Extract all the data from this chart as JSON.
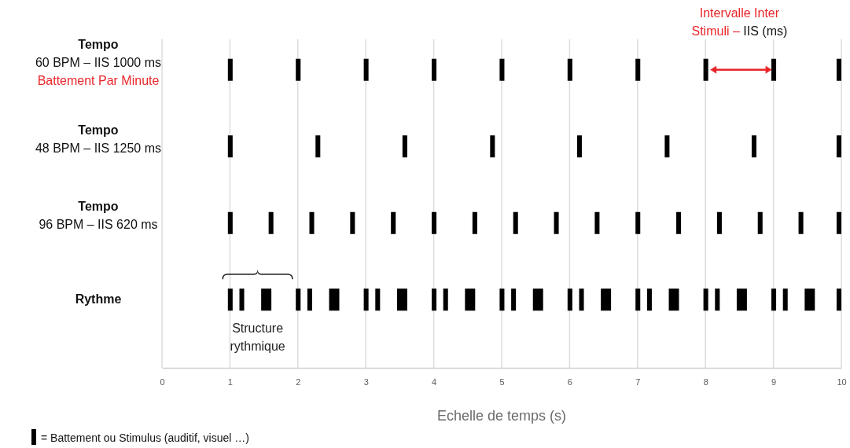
{
  "chart_data": {
    "type": "bar",
    "orientation": "horizontal",
    "color": "#000000",
    "grid": "x",
    "xlabel": "Echelle de temps (s)",
    "xlim": [
      0,
      10
    ],
    "xticks": [
      0,
      1,
      2,
      3,
      4,
      5,
      6,
      7,
      8,
      9,
      10
    ],
    "categories": [
      "Tempo\n60 BPM – IIS 1000 ms",
      "Tempo\n48 BPM – IIS 1250 ms",
      "Tempo\n96 BPM – IIS 620 ms",
      "Rythme"
    ],
    "annotations": [
      "Battement Par Minute",
      "Intervalle Inter\nStimuli –",
      "IIS (ms)",
      "Structure\nrythmique",
      "= Battement ou Stimulus (auditif, visuel …)"
    ],
    "series": [
      {
        "base": [
          0.97,
          0.97,
          0.97,
          0.97
        ],
        "values": [
          0.07,
          0.07,
          0.07,
          0.07
        ]
      },
      {
        "base": [
          1.97,
          2.26,
          1.57,
          1.14
        ],
        "values": [
          0.07,
          0.07,
          0.07,
          0.07
        ]
      },
      {
        "base": [
          2.97,
          3.54,
          2.17,
          1.46
        ],
        "values": [
          0.07,
          0.07,
          0.07,
          0.15
        ]
      },
      {
        "base": [
          3.97,
          4.83,
          2.77,
          1.97
        ],
        "values": [
          0.07,
          0.07,
          0.07,
          0.07
        ]
      },
      {
        "base": [
          4.97,
          6.11,
          3.37,
          2.14
        ],
        "values": [
          0.07,
          0.07,
          0.07,
          0.07
        ]
      },
      {
        "base": [
          5.97,
          7.4,
          3.97,
          2.46
        ],
        "values": [
          0.07,
          0.07,
          0.07,
          0.15
        ]
      },
      {
        "base": [
          6.97,
          8.68,
          4.57,
          2.97
        ],
        "values": [
          0.07,
          0.07,
          0.07,
          0.07
        ]
      },
      {
        "base": [
          7.97,
          9.93,
          5.17,
          3.14
        ],
        "values": [
          0.07,
          0.07,
          0.07,
          0.07
        ]
      },
      {
        "base": [
          8.97,
          null,
          5.77,
          3.46
        ],
        "values": [
          0.07,
          null,
          0.07,
          0.15
        ]
      },
      {
        "base": [
          9.93,
          null,
          6.37,
          3.97
        ],
        "values": [
          0.07,
          null,
          0.07,
          0.07
        ]
      },
      {
        "base": [
          null,
          null,
          6.97,
          4.14
        ],
        "values": [
          null,
          null,
          0.07,
          0.07
        ]
      },
      {
        "base": [
          null,
          null,
          7.57,
          4.46
        ],
        "values": [
          null,
          null,
          0.07,
          0.15
        ]
      },
      {
        "base": [
          null,
          null,
          8.17,
          4.97
        ],
        "values": [
          null,
          null,
          0.07,
          0.07
        ]
      },
      {
        "base": [
          null,
          null,
          8.77,
          5.14
        ],
        "values": [
          null,
          null,
          0.07,
          0.07
        ]
      },
      {
        "base": [
          null,
          null,
          9.37,
          5.46
        ],
        "values": [
          null,
          null,
          0.07,
          0.15
        ]
      },
      {
        "base": [
          null,
          null,
          9.93,
          5.97
        ],
        "values": [
          null,
          null,
          0.07,
          0.07
        ]
      },
      {
        "base": [
          null,
          null,
          null,
          6.14
        ],
        "values": [
          null,
          null,
          null,
          0.07
        ]
      },
      {
        "base": [
          null,
          null,
          null,
          6.46
        ],
        "values": [
          null,
          null,
          null,
          0.15
        ]
      },
      {
        "base": [
          null,
          null,
          null,
          6.97
        ],
        "values": [
          null,
          null,
          null,
          0.07
        ]
      },
      {
        "base": [
          null,
          null,
          null,
          7.14
        ],
        "values": [
          null,
          null,
          null,
          0.07
        ]
      },
      {
        "base": [
          null,
          null,
          null,
          7.46
        ],
        "values": [
          null,
          null,
          null,
          0.15
        ]
      },
      {
        "base": [
          null,
          null,
          null,
          7.97
        ],
        "values": [
          null,
          null,
          null,
          0.07
        ]
      },
      {
        "base": [
          null,
          null,
          null,
          8.14
        ],
        "values": [
          null,
          null,
          null,
          0.07
        ]
      },
      {
        "base": [
          null,
          null,
          null,
          8.46
        ],
        "values": [
          null,
          null,
          null,
          0.15
        ]
      },
      {
        "base": [
          null,
          null,
          null,
          8.97
        ],
        "values": [
          null,
          null,
          null,
          0.07
        ]
      },
      {
        "base": [
          null,
          null,
          null,
          9.14
        ],
        "values": [
          null,
          null,
          null,
          0.07
        ]
      },
      {
        "base": [
          null,
          null,
          null,
          9.46
        ],
        "values": [
          null,
          null,
          null,
          0.15
        ]
      },
      {
        "base": [
          null,
          null,
          null,
          9.93
        ],
        "values": [
          null,
          null,
          null,
          0.07
        ]
      }
    ]
  }
}
